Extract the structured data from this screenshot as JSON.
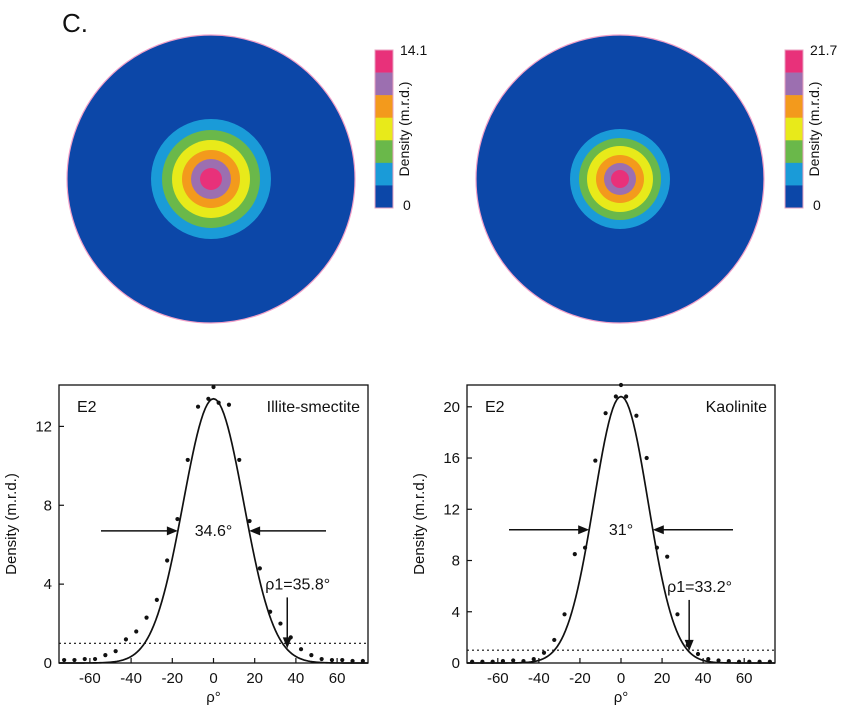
{
  "panel_label": "C.",
  "colors": {
    "background_blue": "#0c47a8",
    "rim": "#f2a0c8",
    "bins": [
      "#0c47a8",
      "#1a9bd8",
      "#6ab84a",
      "#e8ea1a",
      "#f39a1c",
      "#9c6fb0",
      "#e8317a"
    ]
  },
  "chart_data": [
    {
      "type": "heatmap",
      "kind": "pole-figure",
      "colorbar": {
        "title": "Density (m.r.d.)",
        "min_label": "0",
        "max_label": "14.1",
        "min": 0,
        "max": 14.1
      }
    },
    {
      "type": "heatmap",
      "kind": "pole-figure",
      "colorbar": {
        "title": "Density (m.r.d.)",
        "min_label": "0",
        "max_label": "21.7",
        "min": 0,
        "max": 21.7
      }
    },
    {
      "type": "line",
      "label": "E2",
      "mineral": "Illite-smectite",
      "xlabel": "ρ°",
      "ylabel": "Density (m.r.d.)",
      "xlim": [
        -75,
        75
      ],
      "ylim": [
        0,
        14.1
      ],
      "xticks": [
        -60,
        -40,
        -20,
        0,
        20,
        40,
        60
      ],
      "yticks": [
        0,
        4,
        8,
        12
      ],
      "fwhm_label": "34.6°",
      "fwhm_deg": 34.6,
      "rho1_label": "ρ1=35.8°",
      "rho1": 35.8,
      "reference_level": 1,
      "fit_peak": 13.4,
      "points": [
        [
          -72.5,
          0.15
        ],
        [
          -67.5,
          0.15
        ],
        [
          -62.5,
          0.2
        ],
        [
          -57.5,
          0.2
        ],
        [
          -52.5,
          0.4
        ],
        [
          -47.5,
          0.6
        ],
        [
          -42.5,
          1.2
        ],
        [
          -37.5,
          1.6
        ],
        [
          -32.5,
          2.3
        ],
        [
          -27.5,
          3.2
        ],
        [
          -22.5,
          5.2
        ],
        [
          -17.5,
          7.3
        ],
        [
          -12.5,
          10.3
        ],
        [
          -7.5,
          13.0
        ],
        [
          -2.5,
          13.4
        ],
        [
          0,
          14.0
        ],
        [
          2.5,
          13.2
        ],
        [
          7.5,
          13.1
        ],
        [
          12.5,
          10.3
        ],
        [
          17.5,
          7.2
        ],
        [
          22.5,
          4.8
        ],
        [
          27.5,
          2.6
        ],
        [
          32.5,
          2.0
        ],
        [
          37.5,
          1.3
        ],
        [
          42.5,
          0.7
        ],
        [
          47.5,
          0.4
        ],
        [
          52.5,
          0.2
        ],
        [
          57.5,
          0.15
        ],
        [
          62.5,
          0.15
        ],
        [
          67.5,
          0.1
        ],
        [
          72.5,
          0.1
        ]
      ]
    },
    {
      "type": "line",
      "label": "E2",
      "mineral": "Kaolinite",
      "xlabel": "ρ°",
      "ylabel": "Density (m.r.d.)",
      "xlim": [
        -75,
        75
      ],
      "ylim": [
        0,
        21.7
      ],
      "xticks": [
        -60,
        -40,
        -20,
        0,
        20,
        40,
        60
      ],
      "yticks": [
        0,
        4,
        8,
        12,
        16,
        20
      ],
      "fwhm_label": "31°",
      "fwhm_deg": 31.0,
      "rho1_label": "ρ1=33.2°",
      "rho1": 33.2,
      "reference_level": 1,
      "fit_peak": 20.8,
      "points": [
        [
          -72.5,
          0.1
        ],
        [
          -67.5,
          0.1
        ],
        [
          -62.5,
          0.1
        ],
        [
          -57.5,
          0.15
        ],
        [
          -52.5,
          0.2
        ],
        [
          -47.5,
          0.15
        ],
        [
          -42.5,
          0.3
        ],
        [
          -37.5,
          0.8
        ],
        [
          -32.5,
          1.8
        ],
        [
          -27.5,
          3.8
        ],
        [
          -22.5,
          8.5
        ],
        [
          -17.5,
          9.0
        ],
        [
          -12.5,
          15.8
        ],
        [
          -7.5,
          19.5
        ],
        [
          -2.5,
          20.8
        ],
        [
          0,
          21.7
        ],
        [
          2.5,
          20.8
        ],
        [
          7.5,
          19.3
        ],
        [
          12.5,
          16.0
        ],
        [
          17.5,
          9.0
        ],
        [
          22.5,
          8.3
        ],
        [
          27.5,
          3.8
        ],
        [
          32.5,
          1.4
        ],
        [
          37.5,
          0.7
        ],
        [
          42.5,
          0.3
        ],
        [
          47.5,
          0.2
        ],
        [
          52.5,
          0.15
        ],
        [
          57.5,
          0.1
        ],
        [
          62.5,
          0.1
        ],
        [
          67.5,
          0.1
        ],
        [
          72.5,
          0.1
        ]
      ]
    }
  ]
}
